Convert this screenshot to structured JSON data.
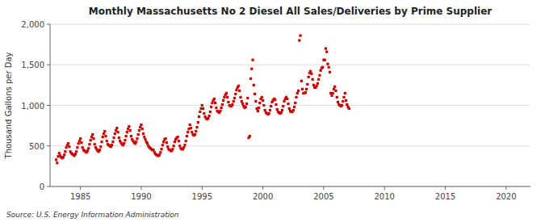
{
  "chart_data": {
    "type": "scatter",
    "title": "Monthly Massachusetts No 2 Diesel All Sales/Deliveries by Prime Supplier",
    "ylabel": "Thousand Gallons per Day",
    "source": "Source: U.S. Energy Information Administration",
    "color": "#cc0000",
    "marker": "square",
    "grid": true,
    "xlim": [
      1982.5,
      2022
    ],
    "ylim": [
      0,
      2000
    ],
    "xticks": [
      1985,
      1990,
      1995,
      2000,
      2005,
      2010,
      2015,
      2020
    ],
    "yticks": [
      0,
      500,
      {
        "value": 1000,
        "label": "1,000"
      },
      {
        "value": 1500,
        "label": "1,500"
      },
      {
        "value": 2000,
        "label": "2,000"
      }
    ],
    "x": [
      1983.0,
      1983.083,
      1983.167,
      1983.25,
      1983.333,
      1983.417,
      1983.5,
      1983.583,
      1983.667,
      1983.75,
      1983.833,
      1983.917,
      1984.0,
      1984.083,
      1984.167,
      1984.25,
      1984.333,
      1984.417,
      1984.5,
      1984.583,
      1984.667,
      1984.75,
      1984.833,
      1984.917,
      1985.0,
      1985.083,
      1985.167,
      1985.25,
      1985.333,
      1985.417,
      1985.5,
      1985.583,
      1985.667,
      1985.75,
      1985.833,
      1985.917,
      1986.0,
      1986.083,
      1986.167,
      1986.25,
      1986.333,
      1986.417,
      1986.5,
      1986.583,
      1986.667,
      1986.75,
      1986.833,
      1986.917,
      1987.0,
      1987.083,
      1987.167,
      1987.25,
      1987.333,
      1987.417,
      1987.5,
      1987.583,
      1987.667,
      1987.75,
      1987.833,
      1987.917,
      1988.0,
      1988.083,
      1988.167,
      1988.25,
      1988.333,
      1988.417,
      1988.5,
      1988.583,
      1988.667,
      1988.75,
      1988.833,
      1988.917,
      1989.0,
      1989.083,
      1989.167,
      1989.25,
      1989.333,
      1989.417,
      1989.5,
      1989.583,
      1989.667,
      1989.75,
      1989.833,
      1989.917,
      1990.0,
      1990.083,
      1990.167,
      1990.25,
      1990.333,
      1990.417,
      1990.5,
      1990.583,
      1990.667,
      1990.75,
      1990.833,
      1990.917,
      1991.0,
      1991.083,
      1991.167,
      1991.25,
      1991.333,
      1991.417,
      1991.5,
      1991.583,
      1991.667,
      1991.75,
      1991.833,
      1991.917,
      1992.0,
      1992.083,
      1992.167,
      1992.25,
      1992.333,
      1992.417,
      1992.5,
      1992.583,
      1992.667,
      1992.75,
      1992.833,
      1992.917,
      1993.0,
      1993.083,
      1993.167,
      1993.25,
      1993.333,
      1993.417,
      1993.5,
      1993.583,
      1993.667,
      1993.75,
      1993.833,
      1993.917,
      1994.0,
      1994.083,
      1994.167,
      1994.25,
      1994.333,
      1994.417,
      1994.5,
      1994.583,
      1994.667,
      1994.75,
      1994.833,
      1994.917,
      1995.0,
      1995.083,
      1995.167,
      1995.25,
      1995.333,
      1995.417,
      1995.5,
      1995.583,
      1995.667,
      1995.75,
      1995.833,
      1995.917,
      1996.0,
      1996.083,
      1996.167,
      1996.25,
      1996.333,
      1996.417,
      1996.5,
      1996.583,
      1996.667,
      1996.75,
      1996.833,
      1996.917,
      1997.0,
      1997.083,
      1997.167,
      1997.25,
      1997.333,
      1997.417,
      1997.5,
      1997.583,
      1997.667,
      1997.75,
      1997.833,
      1997.917,
      1998.0,
      1998.083,
      1998.167,
      1998.25,
      1998.333,
      1998.417,
      1998.5,
      1998.583,
      1998.667,
      1998.75,
      1998.833,
      1998.917,
      1999.0,
      1999.083,
      1999.167,
      1999.25,
      1999.333,
      1999.417,
      1999.5,
      1999.583,
      1999.667,
      1999.75,
      1999.833,
      1999.917,
      2000.0,
      2000.083,
      2000.167,
      2000.25,
      2000.333,
      2000.417,
      2000.5,
      2000.583,
      2000.667,
      2000.75,
      2000.833,
      2000.917,
      2001.0,
      2001.083,
      2001.167,
      2001.25,
      2001.333,
      2001.417,
      2001.5,
      2001.583,
      2001.667,
      2001.75,
      2001.833,
      2001.917,
      2002.0,
      2002.083,
      2002.167,
      2002.25,
      2002.333,
      2002.417,
      2002.5,
      2002.583,
      2002.667,
      2002.75,
      2002.833,
      2002.917,
      2003.0,
      2003.083,
      2003.167,
      2003.25,
      2003.333,
      2003.417,
      2003.5,
      2003.583,
      2003.667,
      2003.75,
      2003.833,
      2003.917,
      2004.0,
      2004.083,
      2004.167,
      2004.25,
      2004.333,
      2004.417,
      2004.5,
      2004.583,
      2004.667,
      2004.75,
      2004.833,
      2004.917,
      2005.0,
      2005.083,
      2005.167,
      2005.25,
      2005.333,
      2005.417,
      2005.5,
      2005.583,
      2005.667,
      2005.75,
      2005.833,
      2005.917,
      2006.0,
      2006.083,
      2006.167,
      2006.25,
      2006.333,
      2006.417,
      2006.5,
      2006.583,
      2006.667,
      2006.75,
      2006.833,
      2006.917,
      2007.0,
      2007.083
    ],
    "values": [
      330,
      290,
      370,
      410,
      380,
      360,
      350,
      360,
      390,
      430,
      480,
      510,
      530,
      490,
      430,
      410,
      400,
      390,
      380,
      400,
      430,
      480,
      530,
      560,
      590,
      540,
      480,
      450,
      440,
      430,
      420,
      440,
      470,
      520,
      570,
      610,
      640,
      590,
      520,
      480,
      460,
      440,
      430,
      450,
      490,
      550,
      610,
      650,
      680,
      620,
      560,
      520,
      510,
      500,
      490,
      510,
      550,
      600,
      650,
      690,
      720,
      670,
      600,
      560,
      540,
      520,
      510,
      530,
      570,
      620,
      670,
      710,
      740,
      690,
      620,
      580,
      560,
      540,
      530,
      550,
      590,
      640,
      690,
      730,
      760,
      710,
      650,
      610,
      580,
      550,
      530,
      500,
      480,
      470,
      460,
      450,
      450,
      420,
      400,
      390,
      380,
      380,
      390,
      420,
      460,
      510,
      550,
      580,
      590,
      540,
      490,
      460,
      450,
      440,
      440,
      460,
      500,
      550,
      580,
      600,
      610,
      560,
      500,
      470,
      460,
      460,
      480,
      510,
      560,
      620,
      670,
      710,
      760,
      720,
      670,
      640,
      630,
      640,
      680,
      730,
      790,
      860,
      920,
      960,
      1000,
      960,
      900,
      860,
      840,
      830,
      840,
      870,
      920,
      980,
      1030,
      1060,
      1080,
      1030,
      970,
      930,
      920,
      910,
      930,
      970,
      1010,
      1060,
      1100,
      1130,
      1150,
      1100,
      1040,
      1000,
      990,
      990,
      1010,
      1050,
      1090,
      1140,
      1190,
      1220,
      1240,
      1180,
      1100,
      1050,
      1020,
      990,
      970,
      980,
      1020,
      1090,
      600,
      620,
      1330,
      1450,
      1560,
      1250,
      1140,
      1050,
      960,
      930,
      970,
      1030,
      1080,
      1100,
      1060,
      1000,
      940,
      910,
      900,
      890,
      900,
      940,
      990,
      1040,
      1060,
      1080,
      1070,
      1010,
      950,
      920,
      910,
      900,
      910,
      940,
      990,
      1050,
      1080,
      1100,
      1080,
      1020,
      960,
      930,
      920,
      920,
      940,
      980,
      1030,
      1100,
      1150,
      1180,
      1800,
      1860,
      1300,
      1200,
      1150,
      1150,
      1160,
      1200,
      1260,
      1350,
      1400,
      1420,
      1390,
      1320,
      1250,
      1220,
      1220,
      1240,
      1270,
      1320,
      1370,
      1430,
      1460,
      1470,
      1560,
      1560,
      1700,
      1660,
      1510,
      1470,
      1410,
      1150,
      1120,
      1150,
      1200,
      1230,
      1180,
      1100,
      1040,
      1010,
      1000,
      990,
      1000,
      1050,
      1100,
      1150,
      1060,
      1010,
      980,
      960
    ]
  }
}
